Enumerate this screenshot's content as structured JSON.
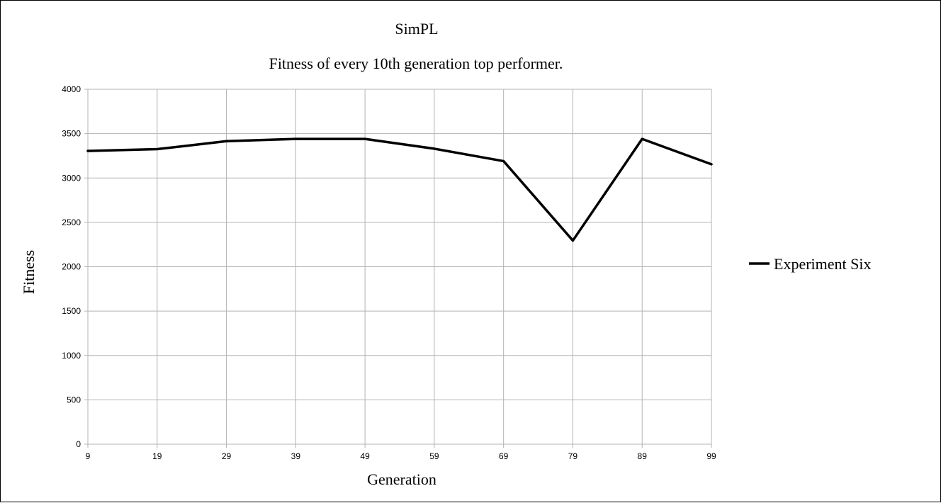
{
  "chart_data": {
    "type": "line",
    "title": "SimPL",
    "subtitle": "Fitness of every 10th generation top performer.",
    "xlabel": "Generation",
    "ylabel": "Fitness",
    "x": [
      9,
      19,
      29,
      39,
      49,
      59,
      69,
      79,
      89,
      99
    ],
    "x_tick_labels": [
      "9",
      "19",
      "29",
      "39",
      "49",
      "59",
      "69",
      "79",
      "89",
      "99"
    ],
    "y_tick_labels": [
      "0",
      "500",
      "1000",
      "1500",
      "2000",
      "2500",
      "3000",
      "3500",
      "4000"
    ],
    "ylim": [
      0,
      4000
    ],
    "grid": true,
    "legend_position": "right",
    "series": [
      {
        "name": "Experiment Six",
        "color": "#000000",
        "values": [
          3305,
          3325,
          3415,
          3440,
          3440,
          3330,
          3190,
          2295,
          3440,
          3155
        ]
      }
    ]
  }
}
